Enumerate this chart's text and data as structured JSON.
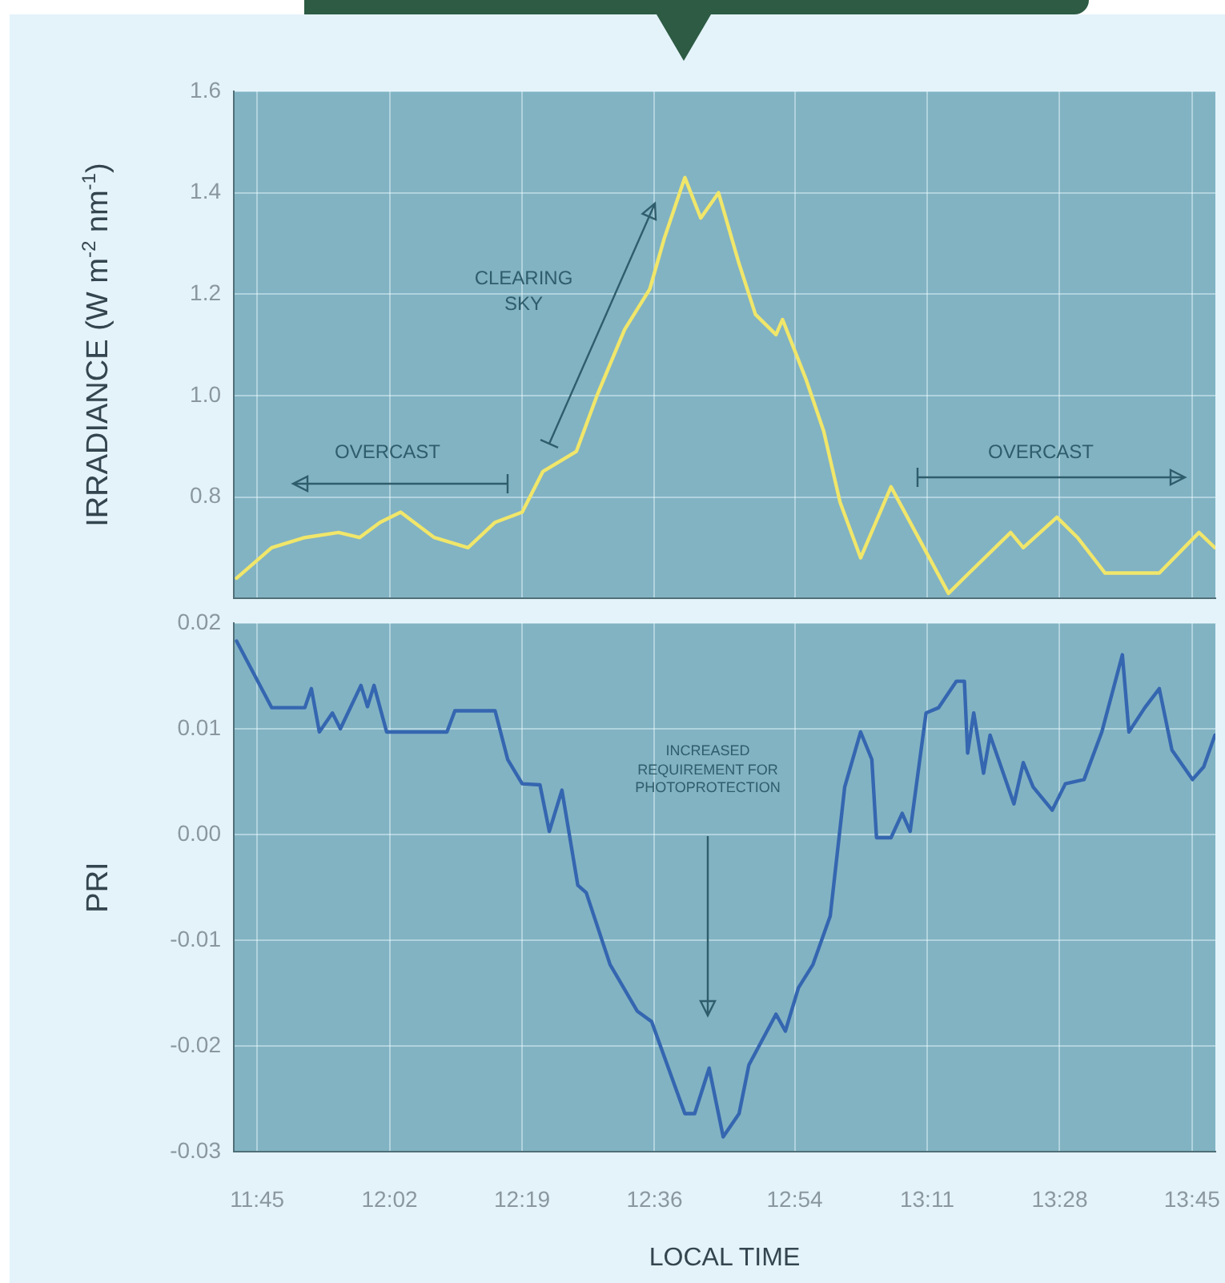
{
  "chart_data": [
    {
      "type": "line",
      "ylabel": "IRRADIANCE (W m$^{-2}$ nm$^{-1}$)",
      "xlim": [
        11.7,
        13.8
      ],
      "xticks": [
        {
          "value": 11.75,
          "label": null
        },
        {
          "value": 12.0333,
          "label": null
        },
        {
          "value": 12.3167,
          "label": null
        },
        {
          "value": 12.6,
          "label": null
        },
        {
          "value": 12.9,
          "label": null
        },
        {
          "value": 13.1833,
          "label": null
        },
        {
          "value": 13.4667,
          "label": null
        },
        {
          "value": 13.75,
          "label": null
        }
      ],
      "ylim": [
        0.6,
        1.6
      ],
      "yticks": [
        0.8,
        {
          "value": 1,
          "label": "1.0"
        },
        1.2,
        1.4,
        1.6
      ],
      "tick_labels": "y",
      "grid": true,
      "marker": "none",
      "line_style": "solid",
      "annotations": [
        "OVERCAST",
        "CLEARING SKY",
        "OVERCAST"
      ],
      "series": [
        {
          "color": "#f0e66a",
          "x": [
            11.706,
            11.781,
            11.852,
            11.924,
            11.969,
            12.013,
            12.057,
            12.129,
            12.201,
            12.259,
            12.317,
            12.361,
            12.433,
            12.477,
            12.536,
            12.59,
            12.621,
            12.665,
            12.699,
            12.737,
            12.781,
            12.816,
            12.86,
            12.874,
            12.925,
            12.962,
            12.997,
            13.041,
            13.106,
            13.229,
            13.273,
            13.362,
            13.389,
            13.461,
            13.505,
            13.564,
            13.68,
            13.765,
            13.799
          ],
          "values": [
            0.64,
            0.7,
            0.72,
            0.73,
            0.72,
            0.75,
            0.77,
            0.72,
            0.7,
            0.75,
            0.77,
            0.85,
            0.89,
            1.0,
            1.13,
            1.21,
            1.31,
            1.43,
            1.35,
            1.4,
            1.26,
            1.16,
            1.12,
            1.15,
            1.03,
            0.93,
            0.79,
            0.68,
            0.82,
            0.61,
            0.65,
            0.73,
            0.7,
            0.76,
            0.72,
            0.65,
            0.65,
            0.73,
            0.7
          ]
        }
      ]
    },
    {
      "type": "line",
      "ylabel": "PRI",
      "xlabel": "LOCAL TIME",
      "xlim": [
        11.7,
        13.8
      ],
      "xticks": [
        {
          "value": 11.75,
          "label": "11:45"
        },
        {
          "value": 12.0333,
          "label": "12:02"
        },
        {
          "value": 12.3167,
          "label": "12:19"
        },
        {
          "value": 12.6,
          "label": "12:36"
        },
        {
          "value": 12.9,
          "label": "12:54"
        },
        {
          "value": 13.1833,
          "label": "13:11"
        },
        {
          "value": 13.4667,
          "label": "13:28"
        },
        {
          "value": 13.75,
          "label": "13:45"
        }
      ],
      "ylim": [
        -0.03,
        0.02
      ],
      "yticks": [
        -0.03,
        -0.02,
        -0.01,
        {
          "value": 0,
          "label": "0.00"
        },
        0.01,
        0.02
      ],
      "grid": true,
      "marker": "none",
      "line_style": "solid",
      "annotations": [
        "INCREASED REQUIREMENT FOR PHOTOPROTECTION"
      ],
      "series": [
        {
          "color": "#3566b0",
          "x": [
            11.706,
            11.781,
            11.852,
            11.866,
            11.883,
            11.911,
            11.928,
            11.972,
            11.986,
            12.0,
            12.027,
            12.156,
            12.173,
            12.259,
            12.286,
            12.317,
            12.355,
            12.375,
            12.402,
            12.436,
            12.454,
            12.505,
            12.563,
            12.594,
            12.665,
            12.686,
            12.717,
            12.747,
            12.781,
            12.802,
            12.86,
            12.88,
            12.908,
            12.939,
            12.976,
            13.007,
            13.041,
            13.065,
            13.075,
            13.106,
            13.13,
            13.147,
            13.181,
            13.208,
            13.246,
            13.263,
            13.27,
            13.283,
            13.304,
            13.318,
            13.369,
            13.389,
            13.41,
            13.451,
            13.479,
            13.519,
            13.557,
            13.601,
            13.615,
            13.649,
            13.68,
            13.707,
            13.751,
            13.775,
            13.799
          ],
          "values": [
            0.0183,
            0.012,
            0.012,
            0.0138,
            0.0097,
            0.0115,
            0.01,
            0.0141,
            0.0121,
            0.0141,
            0.0097,
            0.0097,
            0.0117,
            0.0117,
            0.0071,
            0.0048,
            0.0047,
            0.0003,
            0.0042,
            -0.0048,
            -0.0055,
            -0.0123,
            -0.0167,
            -0.0177,
            -0.0264,
            -0.0264,
            -0.0221,
            -0.0286,
            -0.0264,
            -0.0218,
            -0.017,
            -0.0186,
            -0.0145,
            -0.0123,
            -0.0077,
            0.0045,
            0.0097,
            0.0071,
            -0.0003,
            -0.0003,
            0.002,
            0.0003,
            0.0115,
            0.012,
            0.0145,
            0.0145,
            0.0077,
            0.0115,
            0.0058,
            0.0094,
            0.0029,
            0.0068,
            0.0045,
            0.0023,
            0.0048,
            0.0052,
            0.0097,
            0.017,
            0.0097,
            0.012,
            0.0138,
            0.008,
            0.0052,
            0.0064,
            0.0094
          ]
        }
      ]
    }
  ]
}
